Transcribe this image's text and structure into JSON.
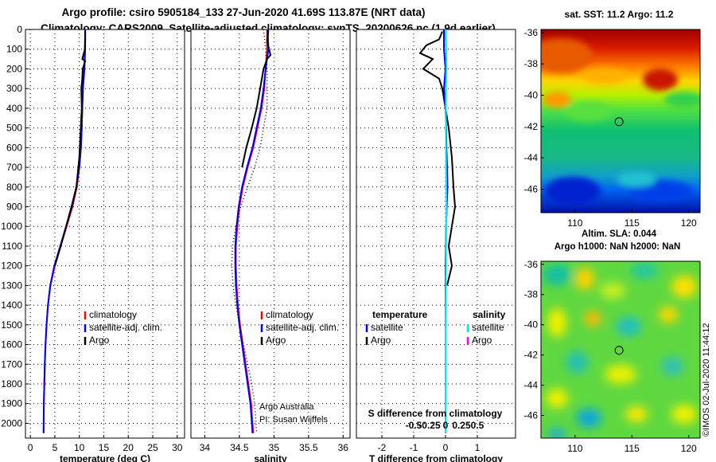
{
  "header": {
    "line1": "Argo profile: csiro 5905184_133 27-Jun-2020 41.69S 113.87E (NRT data)",
    "line2": "Climatology: CARS2009. Satellite-adjusted climatology: synTS_20200626.nc (1.9d earlier)"
  },
  "colors": {
    "climatology": "#ff0000",
    "satellite": "#0000ff",
    "argo": "#000000",
    "satellite_s": "#00e5ff",
    "argo_s": "#ff00ff"
  },
  "credit": {
    "line1": "Argo Australia",
    "line2": "PI: Susan Wijffels"
  },
  "watermark": "©IMOS 02-Jul-2020 11:44:12",
  "chart_data": [
    {
      "id": "temperature",
      "type": "line",
      "xlabel": "temperature (deg C)",
      "ylabel": "",
      "xlim": [
        -1,
        31.5
      ],
      "ylim": [
        2075,
        0
      ],
      "xticks": [
        0,
        5,
        10,
        15,
        20,
        25,
        30
      ],
      "xtick_labels": [
        "0",
        "5",
        "10",
        "15",
        "20",
        "25",
        "30"
      ],
      "yticks": [
        0,
        100,
        200,
        300,
        400,
        500,
        600,
        700,
        800,
        900,
        1000,
        1100,
        1200,
        1300,
        1400,
        1500,
        1600,
        1700,
        1800,
        1900,
        2000
      ],
      "ytick_labels": [
        "0",
        "100",
        "200",
        "300",
        "400",
        "500",
        "600",
        "700",
        "800",
        "900",
        "1000",
        "1100",
        "1200",
        "1300",
        "1400",
        "1500",
        "1600",
        "1700",
        "1800",
        "1900",
        "2000"
      ],
      "grid": true,
      "legend": [
        "climatology",
        "satellite-adj. clim.",
        "Argo"
      ],
      "series": [
        {
          "name": "climatology",
          "color": "#ff0000",
          "x": [
            11.2,
            11.1,
            11.0,
            10.7,
            10.6,
            10.5,
            10.3,
            10.0,
            9.5,
            8.6,
            7.4,
            6.2,
            5.0,
            4.1,
            3.6,
            3.3,
            3.1,
            2.95,
            2.85,
            2.75,
            2.7
          ],
          "y": [
            0,
            100,
            200,
            300,
            400,
            500,
            600,
            700,
            800,
            900,
            1000,
            1100,
            1200,
            1300,
            1400,
            1500,
            1600,
            1700,
            1800,
            1900,
            2050
          ]
        },
        {
          "name": "satellite-adj. clim.",
          "color": "#0000ff",
          "x": [
            11.2,
            11.2,
            11.05,
            10.75,
            10.6,
            10.5,
            10.35,
            10.0,
            9.4,
            8.5,
            7.3,
            6.1,
            4.9,
            4.05,
            3.6,
            3.3,
            3.1,
            2.95,
            2.85,
            2.75,
            2.7
          ],
          "y": [
            0,
            100,
            200,
            300,
            400,
            500,
            600,
            700,
            800,
            900,
            1000,
            1100,
            1200,
            1300,
            1400,
            1500,
            1600,
            1700,
            1800,
            1900,
            2050
          ]
        },
        {
          "name": "Argo",
          "color": "#000000",
          "x": [
            11.2,
            11.2,
            11.15,
            10.6,
            11.2,
            10.7,
            10.6,
            10.4,
            10.5,
            10.3,
            10.0,
            9.4,
            8.4,
            7.3,
            6.2,
            5.0
          ],
          "y": [
            5,
            50,
            100,
            150,
            160,
            200,
            250,
            300,
            400,
            500,
            650,
            800,
            900,
            1000,
            1100,
            1200
          ]
        }
      ]
    },
    {
      "id": "salinity",
      "type": "line",
      "xlabel": "salinity",
      "ylabel": "",
      "xlim": [
        33.8,
        36.1
      ],
      "ylim": [
        2075,
        0
      ],
      "xticks": [
        34,
        34.5,
        35,
        35.5,
        36
      ],
      "xtick_labels": [
        "34",
        "34.5",
        "35",
        "35.5",
        "36"
      ],
      "grid": true,
      "legend": [
        "climatology",
        "satellite-adj. clim.",
        "Argo"
      ],
      "series": [
        {
          "name": "climatology",
          "color": "#ff0000",
          "x": [
            34.9,
            34.9,
            34.88,
            34.86,
            34.82,
            34.76,
            34.7,
            34.62,
            34.55,
            34.5,
            34.47,
            34.45,
            34.45,
            34.46,
            34.48,
            34.51,
            34.55,
            34.59,
            34.63,
            34.67,
            34.7
          ],
          "y": [
            0,
            100,
            200,
            300,
            400,
            500,
            600,
            700,
            800,
            900,
            1000,
            1100,
            1200,
            1300,
            1400,
            1500,
            1600,
            1700,
            1800,
            1900,
            2050
          ]
        },
        {
          "name": "satellite-adj. clim.",
          "color": "#0000ff",
          "x": [
            34.91,
            34.92,
            34.88,
            34.85,
            34.81,
            34.75,
            34.69,
            34.61,
            34.54,
            34.49,
            34.46,
            34.44,
            34.44,
            34.45,
            34.47,
            34.5,
            34.54,
            34.58,
            34.62,
            34.66,
            34.69
          ],
          "y": [
            0,
            100,
            200,
            300,
            400,
            500,
            600,
            700,
            800,
            900,
            1000,
            1100,
            1200,
            1300,
            1400,
            1500,
            1600,
            1700,
            1800,
            1900,
            2050
          ]
        },
        {
          "name": "Argo",
          "color": "#000000",
          "x": [
            34.92,
            34.9,
            34.95,
            34.9,
            34.85,
            34.8,
            34.75,
            34.68,
            34.6,
            34.54
          ],
          "y": [
            5,
            60,
            130,
            150,
            200,
            300,
            400,
            500,
            600,
            700
          ]
        },
        {
          "name": "CARS2009",
          "color": "#000000",
          "dotted": true,
          "x": [
            34.85,
            34.88,
            34.9,
            34.9,
            34.9,
            34.85,
            34.8,
            34.72,
            34.62,
            34.52,
            34.45,
            34.4,
            34.39,
            34.41,
            34.45,
            34.5,
            34.56,
            34.62,
            34.68,
            34.72,
            34.75
          ],
          "y": [
            0,
            100,
            200,
            300,
            400,
            500,
            600,
            700,
            800,
            900,
            1000,
            1100,
            1200,
            1300,
            1400,
            1500,
            1600,
            1700,
            1800,
            1900,
            2050
          ]
        }
      ]
    },
    {
      "id": "difference",
      "type": "line",
      "xlabel": "T difference from climatology",
      "secondary_xlabel": "S difference from climatology",
      "xlim": [
        -2.8,
        2.2
      ],
      "ylim": [
        2075,
        0
      ],
      "xticks": [
        -2,
        -1,
        0,
        1
      ],
      "xtick_labels": [
        "-2",
        "-1",
        "0",
        "1"
      ],
      "sticks": [
        -0.5,
        -0.25,
        0,
        0.25,
        0.5
      ],
      "stick_labels": [
        "-0.5",
        "-0.25",
        "0",
        "0.25",
        "0.5"
      ],
      "grid": true,
      "legend_titles": [
        "temperature",
        "salinity"
      ],
      "legend": [
        "satellite",
        "Argo"
      ],
      "series": [
        {
          "name": "T Argo",
          "color": "#000000",
          "x": [
            -0.1,
            -0.2,
            -0.6,
            -0.8,
            -0.4,
            -0.7,
            -0.2,
            -0.1,
            0.0,
            0.1,
            0.2,
            0.25,
            0.3,
            0.2,
            0.1,
            0.2,
            0.05
          ],
          "y": [
            10,
            50,
            80,
            120,
            150,
            200,
            250,
            300,
            400,
            500,
            650,
            800,
            900,
            1000,
            1100,
            1200,
            1300
          ]
        },
        {
          "name": "T satellite",
          "color": "#0000ff",
          "x": [
            -0.05,
            -0.05,
            0.0,
            -0.05,
            0.0,
            0.02,
            0.03,
            0.05,
            0.06,
            0.04,
            0.02,
            0.0,
            0.0,
            0.0,
            0.0,
            0.0,
            0.0
          ],
          "y": [
            0,
            100,
            200,
            300,
            400,
            500,
            600,
            700,
            800,
            900,
            1000,
            1200,
            1400,
            1600,
            1800,
            1900,
            2050
          ]
        },
        {
          "name": "S satellite",
          "color": "#00e5ff",
          "x": [
            0.0,
            0.02,
            0.03,
            0.01,
            0.01,
            0.02,
            0.03,
            0.02,
            0.01,
            0.0,
            0.0,
            0.0,
            0.0,
            0.0,
            0.0
          ],
          "y": [
            0,
            100,
            200,
            300,
            500,
            700,
            900,
            1100,
            1300,
            1500,
            1700,
            1800,
            1900,
            2000,
            2050
          ]
        }
      ]
    },
    {
      "id": "sst_map",
      "type": "heatmap",
      "title": "sat. SST: 11.2 Argo: 11.2",
      "xlim": [
        107,
        121
      ],
      "ylim": [
        -47.5,
        -35.8
      ],
      "xticks": [
        110,
        115,
        120
      ],
      "xtick_labels": [
        "110",
        "115",
        "120"
      ],
      "yticks": [
        -36,
        -38,
        -40,
        -42,
        -44,
        -46
      ],
      "ytick_labels": [
        "-36",
        "-38",
        "-40",
        "-42",
        "-44",
        "-46"
      ],
      "marker": {
        "lon": 113.87,
        "lat": -41.69
      }
    },
    {
      "id": "sla_map",
      "type": "heatmap",
      "title": "Altim. SLA: 0.044",
      "subtitle": "Argo h1000: NaN h2000: NaN",
      "xlim": [
        107,
        121
      ],
      "ylim": [
        -47.5,
        -35.8
      ],
      "xticks": [
        110,
        115,
        120
      ],
      "xtick_labels": [
        "110",
        "115",
        "120"
      ],
      "yticks": [
        -36,
        -38,
        -40,
        -42,
        -44,
        -46
      ],
      "ytick_labels": [
        "-36",
        "-38",
        "-40",
        "-42",
        "-44",
        "-46"
      ],
      "marker": {
        "lon": 113.87,
        "lat": -41.69
      }
    }
  ]
}
